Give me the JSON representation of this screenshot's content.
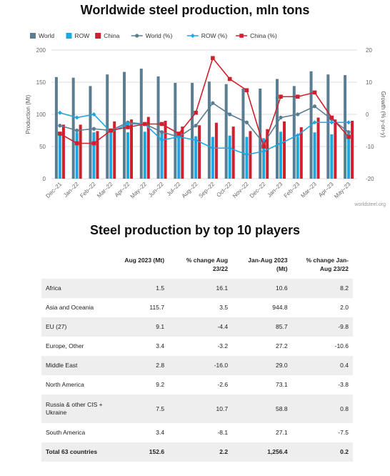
{
  "titles": {
    "chart": "Worldwide steel production, mln tons",
    "table": "Steel production by top 10 players"
  },
  "colors": {
    "world": "#5a7d92",
    "row": "#1ea7e0",
    "china": "#d0202e"
  },
  "chart_data": {
    "type": "bar",
    "categories": [
      "Dec–21",
      "Jan–22",
      "Feb–22",
      "Mar–22",
      "Apr–22",
      "May–22",
      "Jun–22",
      "Jul–22",
      "Aug–22",
      "Sep–22",
      "Oct–22",
      "Nov–22",
      "Dec–22",
      "Jan–23",
      "Feb–23",
      "Mar–23",
      "Apr–23",
      "May–23"
    ],
    "series": [
      {
        "name": "World",
        "kind": "bar",
        "axis": "left",
        "values": [
          158,
          157,
          144,
          162,
          166,
          171,
          159,
          149,
          149,
          151,
          147,
          140,
          140,
          155,
          144,
          167,
          162,
          161
        ]
      },
      {
        "name": "ROW",
        "kind": "bar",
        "axis": "left",
        "values": [
          72,
          72,
          72,
          73,
          72,
          73,
          73,
          67,
          66,
          65,
          67,
          65,
          63,
          73,
          65,
          72,
          69,
          70
        ]
      },
      {
        "name": "China",
        "kind": "bar",
        "axis": "left",
        "values": [
          84,
          84,
          74,
          89,
          92,
          96,
          90,
          81,
          83,
          87,
          81,
          74,
          77,
          89,
          80,
          95,
          92,
          90
        ]
      },
      {
        "name": "World (%)",
        "kind": "line",
        "axis": "right",
        "values": [
          -3.5,
          -5,
          -4.5,
          -5,
          -2.5,
          -3,
          -5.5,
          -7,
          -3.5,
          3.5,
          0,
          -2.5,
          -9,
          -1,
          0,
          2.5,
          -1.5,
          -5.5
        ]
      },
      {
        "name": "ROW (%)",
        "kind": "line",
        "axis": "right",
        "values": [
          0.5,
          -1,
          0,
          -5.5,
          -3,
          -3,
          -8,
          -7,
          -8,
          -10.5,
          -10.5,
          -12.5,
          -11.5,
          -9,
          -6.5,
          -2.5,
          -2.5,
          -2.5
        ]
      },
      {
        "name": "China (%)",
        "kind": "line",
        "axis": "right",
        "values": [
          -6,
          -9,
          -9,
          -5,
          -4,
          -3,
          -3,
          -6,
          0.5,
          17.5,
          11,
          7.5,
          -10,
          5.5,
          5.5,
          6.8,
          -1,
          -7
        ]
      }
    ],
    "ylabel": "Production (Mt)",
    "y2label": "Growth (% y-on-y)",
    "ylim": [
      0,
      200
    ],
    "yticks": [
      0,
      50,
      100,
      150,
      200
    ],
    "y2lim": [
      -20,
      20
    ],
    "y2ticks": [
      -20,
      -10,
      0,
      10,
      20
    ],
    "legend_position": "top-left",
    "grid": "horizontal",
    "watermark": "worldsteel.org"
  },
  "table": {
    "headers": [
      "",
      "Aug 2023 (Mt)",
      "% change Aug 23/22",
      "Jan-Aug 2023 (Mt)",
      "% change Jan-Aug 23/22"
    ],
    "rows": [
      [
        "Africa",
        "1.5",
        "16.1",
        "10.6",
        "8.2"
      ],
      [
        "Asia and Oceania",
        "115.7",
        "3.5",
        "944.8",
        "2.0"
      ],
      [
        "EU (27)",
        "9.1",
        "-4.4",
        "85.7",
        "-9.8"
      ],
      [
        "Europe, Other",
        "3.4",
        "-3.2",
        "27.2",
        "-10.6"
      ],
      [
        "Middle East",
        "2.8",
        "-16.0",
        "29.0",
        "0.4"
      ],
      [
        "North America",
        "9.2",
        "-2.6",
        "73.1",
        "-3.8"
      ],
      [
        "Russia & other CIS + Ukraine",
        "7.5",
        "10.7",
        "58.8",
        "0.8"
      ],
      [
        "South America",
        "3.4",
        "-8.1",
        "27.1",
        "-7.5"
      ],
      [
        "Total 63 countries",
        "152.6",
        "2.2",
        "1,256.4",
        "0.2"
      ]
    ]
  }
}
